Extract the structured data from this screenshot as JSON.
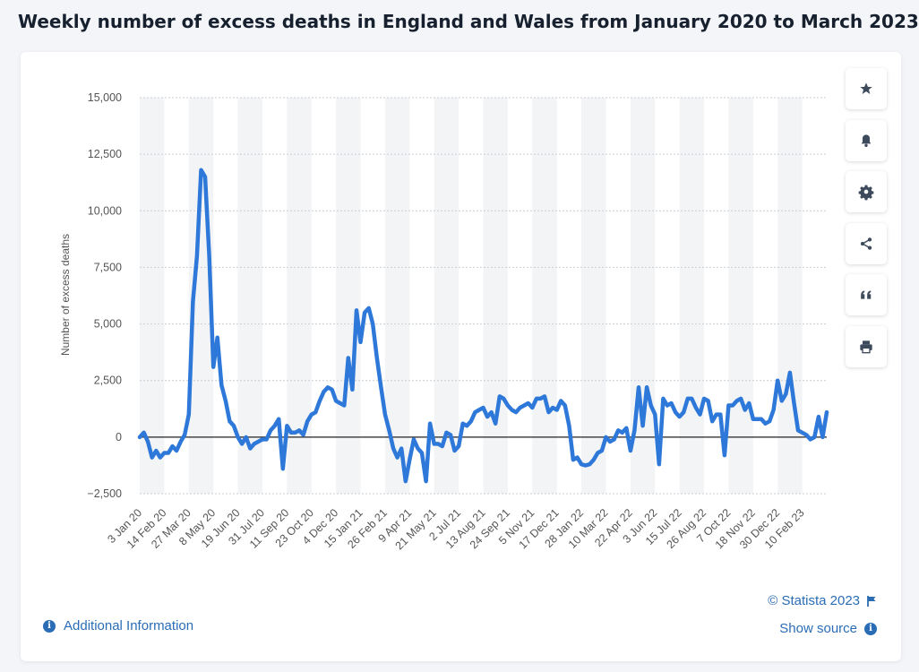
{
  "page": {
    "title": "Weekly number of excess deaths in England and Wales from January 2020 to March 2023"
  },
  "toolbar": {
    "buttons": [
      {
        "name": "star-icon"
      },
      {
        "name": "bell-icon"
      },
      {
        "name": "gear-icon"
      },
      {
        "name": "share-icon"
      },
      {
        "name": "quote-icon"
      },
      {
        "name": "print-icon"
      }
    ]
  },
  "footer": {
    "additional_info": "Additional Information",
    "copyright": "© Statista 2023",
    "show_source": "Show source"
  },
  "colors": {
    "line": "#2d78d8",
    "accent": "#2a6db5",
    "band": "#f3f4f6"
  },
  "chart_data": {
    "type": "line",
    "title": "",
    "xlabel": "",
    "ylabel": "Number of excess deaths",
    "ylim": [
      -2500,
      15000
    ],
    "yticks": [
      -2500,
      0,
      2500,
      5000,
      7500,
      10000,
      12500,
      15000
    ],
    "ytick_labels": [
      "−2,500",
      "0",
      "2,500",
      "5,000",
      "7,500",
      "10,000",
      "12,500",
      "15,000"
    ],
    "xtick_labels": [
      "3 Jan 20",
      "14 Feb 20",
      "27 Mar 20",
      "8 May 20",
      "19 Jun 20",
      "31 Jul 20",
      "11 Sep 20",
      "23 Oct 20",
      "4 Dec 20",
      "15 Jan 21",
      "26 Feb 21",
      "9 Apr 21",
      "21 May 21",
      "2 Jul 21",
      "13 Aug 21",
      "24 Sep 21",
      "5 Nov 21",
      "17 Dec 21",
      "28 Jan 22",
      "10 Mar 22",
      "22 Apr 22",
      "3 Jun 22",
      "15 Jul 22",
      "26 Aug 22",
      "7 Oct 22",
      "18 Nov 22",
      "30 Dec 22",
      "10 Feb 23"
    ],
    "grid": true,
    "legend": "none",
    "series": [
      {
        "values": [
          0,
          200,
          -200,
          -900,
          -600,
          -900,
          -700,
          -700,
          -400,
          -600,
          -200,
          100,
          1000,
          6000,
          8000,
          11800,
          11500,
          8000,
          3100,
          4400,
          2300,
          1600,
          700,
          500,
          0,
          -300,
          0,
          -500,
          -300,
          -200,
          -100,
          -100,
          300,
          500,
          800,
          -1400,
          500,
          200,
          200,
          300,
          100,
          700,
          1000,
          1100,
          1600,
          2000,
          2200,
          2100,
          1600,
          1500,
          1400,
          3500,
          2100,
          5600,
          4200,
          5500,
          5700,
          5000,
          3500,
          2200,
          1000,
          300,
          -500,
          -900,
          -500,
          -1950,
          -1000,
          -100,
          -500,
          -700,
          -1950,
          600,
          -300,
          -300,
          -400,
          200,
          100,
          -600,
          -400,
          600,
          500,
          700,
          1100,
          1200,
          1300,
          900,
          1100,
          600,
          1800,
          1700,
          1400,
          1200,
          1100,
          1300,
          1400,
          1500,
          1300,
          1700,
          1700,
          1800,
          1100,
          1300,
          1200,
          1600,
          1400,
          500,
          -1000,
          -900,
          -1200,
          -1250,
          -1200,
          -1000,
          -700,
          -600,
          0,
          -200,
          -100,
          300,
          200,
          400,
          -600,
          300,
          2200,
          500,
          2200,
          1400,
          1000,
          -1200,
          1700,
          1400,
          1500,
          1100,
          900,
          1100,
          1700,
          1700,
          1300,
          1000,
          1700,
          1600,
          700,
          1000,
          1000,
          -800,
          1400,
          1400,
          1600,
          1700,
          1200,
          1500,
          800,
          800,
          800,
          600,
          700,
          1200,
          2500,
          1600,
          1900,
          2850,
          1500,
          300,
          200,
          100,
          -100,
          0,
          900,
          0,
          1100
        ]
      }
    ]
  }
}
